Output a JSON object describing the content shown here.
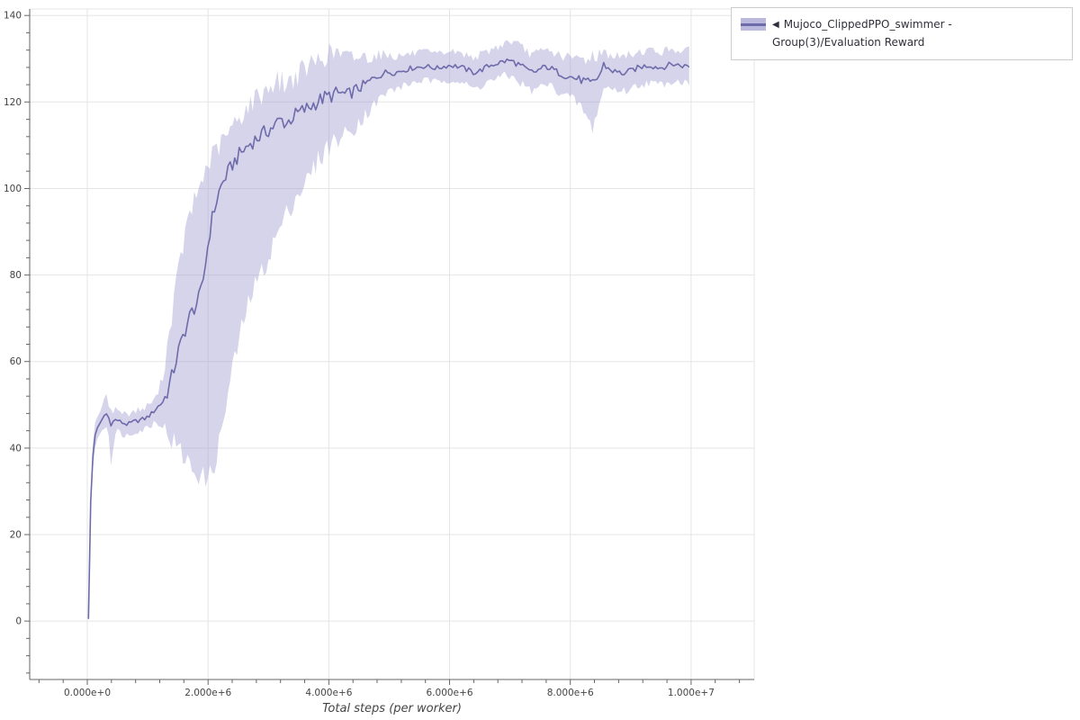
{
  "page": {
    "background": "#ffffff"
  },
  "legend": {
    "marker": "◀",
    "label": "Mujoco_ClippedPPO_swimmer - Group(3)/Evaluation Reward",
    "swatch_fill": "#bab8dc",
    "swatch_line": "#6e6bab",
    "position": "top-right"
  },
  "chart_data": {
    "type": "line",
    "title": "",
    "xlabel": "Total steps (per worker)",
    "ylabel": "",
    "x_range": [
      -954000,
      11045000
    ],
    "y_range": [
      -13.5,
      141.5
    ],
    "x_ticks": [
      0,
      2000000,
      4000000,
      6000000,
      8000000,
      10000000
    ],
    "x_tick_labels": [
      "0.000e+0",
      "2.000e+6",
      "4.000e+6",
      "6.000e+6",
      "8.000e+6",
      "1.000e+7"
    ],
    "y_ticks": [
      0,
      20,
      40,
      60,
      80,
      100,
      120,
      140
    ],
    "y_tick_labels": [
      "0",
      "20",
      "40",
      "60",
      "80",
      "100",
      "120",
      "140"
    ],
    "grid": true,
    "grid_color": "#e5e5e5",
    "outline_color": "#e5e5e5",
    "axis_color": "#666666",
    "tick_label_color": "#444444",
    "legend_position": "top-right",
    "series": [
      {
        "name": "Mujoco_ClippedPPO_swimmer - Group(3)/Evaluation Reward",
        "line_color": "#6e6bab",
        "band_color": "#9b99cc",
        "band_opacity": 0.42,
        "x": [
          20000,
          35000,
          60000,
          80000,
          100000,
          130000,
          160000,
          200000,
          240000,
          280000,
          310000,
          340000,
          370000,
          400000,
          410000,
          425000,
          460000,
          500000,
          550000,
          600000,
          650000,
          700000,
          750000,
          800000,
          850000,
          900000,
          950000,
          1000000,
          1050000,
          1100000,
          1150000,
          1200000,
          1250000,
          1300000,
          1350000,
          1400000,
          1450000,
          1500000,
          1550000,
          1600000,
          1650000,
          1700000,
          1750000,
          1800000,
          1850000,
          1900000,
          1950000,
          2000000,
          2050000,
          2100000,
          2150000,
          2200000,
          2250000,
          2300000,
          2350000,
          2400000,
          2450000,
          2500000,
          2600000,
          2700000,
          2800000,
          2900000,
          3000000,
          3100000,
          3200000,
          3300000,
          3400000,
          3500000,
          3600000,
          3700000,
          3800000,
          3900000,
          4000000,
          4100000,
          4200000,
          4300000,
          4400000,
          4500000,
          4600000,
          4700000,
          4800000,
          4900000,
          5000000,
          5100000,
          5200000,
          5300000,
          5400000,
          5500000,
          5600000,
          5700000,
          5800000,
          5900000,
          6000000,
          6100000,
          6200000,
          6300000,
          6400000,
          6500000,
          6600000,
          6700000,
          6800000,
          6900000,
          7000000,
          7100000,
          7200000,
          7300000,
          7400000,
          7500000,
          7600000,
          7700000,
          7800000,
          7900000,
          8000000,
          8100000,
          8200000,
          8300000,
          8350000,
          8400000,
          8500000,
          8550000,
          8600000,
          8700000,
          8800000,
          8900000,
          9000000,
          9100000,
          9200000,
          9300000,
          9400000,
          9500000,
          9600000,
          9700000,
          9800000,
          9900000,
          10000000
        ],
        "mean": [
          0.5,
          26,
          28,
          34,
          40,
          43,
          44.5,
          45.5,
          46.5,
          47.5,
          48,
          47.5,
          46.5,
          46,
          42,
          46,
          46.5,
          46.5,
          46,
          45.8,
          45.5,
          45.6,
          46,
          46.2,
          46.4,
          46.6,
          46.8,
          47.2,
          47.8,
          48.5,
          49.3,
          50,
          50.8,
          52,
          54,
          56.5,
          59,
          62,
          64,
          66.5,
          68.5,
          70.5,
          72,
          73,
          74.5,
          77,
          82,
          87,
          92,
          95,
          97.5,
          100,
          101.5,
          103,
          104,
          105.5,
          106.5,
          107.5,
          109,
          110.5,
          111.5,
          112.5,
          113.5,
          114.5,
          116,
          115,
          116.5,
          117.5,
          118.2,
          119,
          120,
          120.8,
          121.3,
          121.8,
          122,
          121.5,
          122.5,
          123.2,
          124,
          125,
          126,
          126.6,
          127,
          126.8,
          127.2,
          127.6,
          127.9,
          128.1,
          128.3,
          128,
          127.8,
          128.2,
          128.5,
          128.3,
          128,
          127.4,
          126.8,
          127.2,
          128,
          128.6,
          129,
          129.4,
          129.6,
          129,
          128.2,
          127.2,
          126.8,
          127.6,
          128.2,
          127.6,
          126.8,
          126.2,
          125.8,
          125.4,
          125,
          124.2,
          123.8,
          124.8,
          126.5,
          128.8,
          128,
          127.2,
          126.8,
          126.6,
          127.2,
          127.8,
          128.2,
          128.5,
          128.2,
          127.9,
          128.4,
          128.8,
          128.5,
          128.3,
          128.4
        ],
        "lower": [
          0,
          24,
          26,
          31,
          37,
          40,
          42,
          43,
          44,
          45,
          45.5,
          44,
          42,
          36,
          34,
          40,
          43,
          44,
          43.5,
          43,
          43,
          43,
          43.5,
          44,
          44,
          44,
          44.5,
          45,
          45,
          46,
          46,
          46,
          45,
          44,
          43,
          42,
          41,
          40,
          39,
          38,
          37,
          36,
          35,
          34.5,
          34,
          33.5,
          33,
          33,
          34,
          36,
          39,
          42,
          46,
          50,
          54,
          58,
          61,
          64,
          70,
          75,
          78,
          81,
          84,
          88,
          91,
          94,
          97,
          99,
          101,
          103,
          106,
          108,
          110,
          111,
          112,
          112.5,
          114,
          115.5,
          117,
          118.5,
          120,
          121.5,
          122.5,
          123,
          123.5,
          124,
          124.5,
          124.8,
          125,
          124.8,
          124.5,
          125,
          125.2,
          125,
          124.5,
          123.8,
          123,
          123.5,
          124.5,
          125,
          125.5,
          126,
          126,
          125.2,
          124.2,
          123,
          122.5,
          123.5,
          124.2,
          123.5,
          122.5,
          121.8,
          121,
          120,
          118.5,
          115.5,
          113.5,
          116,
          120,
          123,
          123.5,
          123,
          122.8,
          122.5,
          123,
          123.8,
          124.2,
          124.5,
          124.2,
          124,
          124.5,
          125,
          124.8,
          124.5,
          124.5
        ],
        "upper": [
          1,
          28,
          30,
          37,
          43,
          46,
          47,
          48,
          49.5,
          51,
          52,
          51,
          50,
          49,
          48,
          49,
          49,
          49,
          48.5,
          48,
          48,
          48,
          48.5,
          48.5,
          49,
          49,
          49,
          50,
          50.5,
          51,
          52,
          54,
          57,
          61,
          66,
          71,
          76,
          80,
          84,
          88,
          91,
          94,
          96,
          98,
          100,
          102,
          104,
          105.5,
          107,
          108,
          109,
          110,
          111,
          112,
          113,
          114,
          115,
          116,
          118,
          119.5,
          121,
          122,
          123.5,
          124.5,
          125,
          124,
          125.5,
          126.5,
          127.5,
          128.5,
          129.5,
          130.5,
          131,
          131.5,
          131,
          130,
          130.5,
          130.5,
          130.5,
          130.5,
          131,
          131,
          131,
          130.5,
          130.8,
          131,
          131.2,
          131.4,
          131.5,
          131.2,
          131,
          131.4,
          131.8,
          131.5,
          131.2,
          130.8,
          130.5,
          130.8,
          131.5,
          132.2,
          132.8,
          133.5,
          134.2,
          133.5,
          132.5,
          131.5,
          131,
          131.5,
          132,
          131.5,
          131,
          130.5,
          130.2,
          130,
          130,
          130.2,
          130.5,
          130.8,
          131.2,
          131.5,
          131.2,
          130.8,
          130.5,
          130.5,
          131,
          131.4,
          131.8,
          132,
          131.8,
          131.5,
          132,
          132.3,
          132,
          131.8,
          131.9
        ]
      }
    ]
  }
}
